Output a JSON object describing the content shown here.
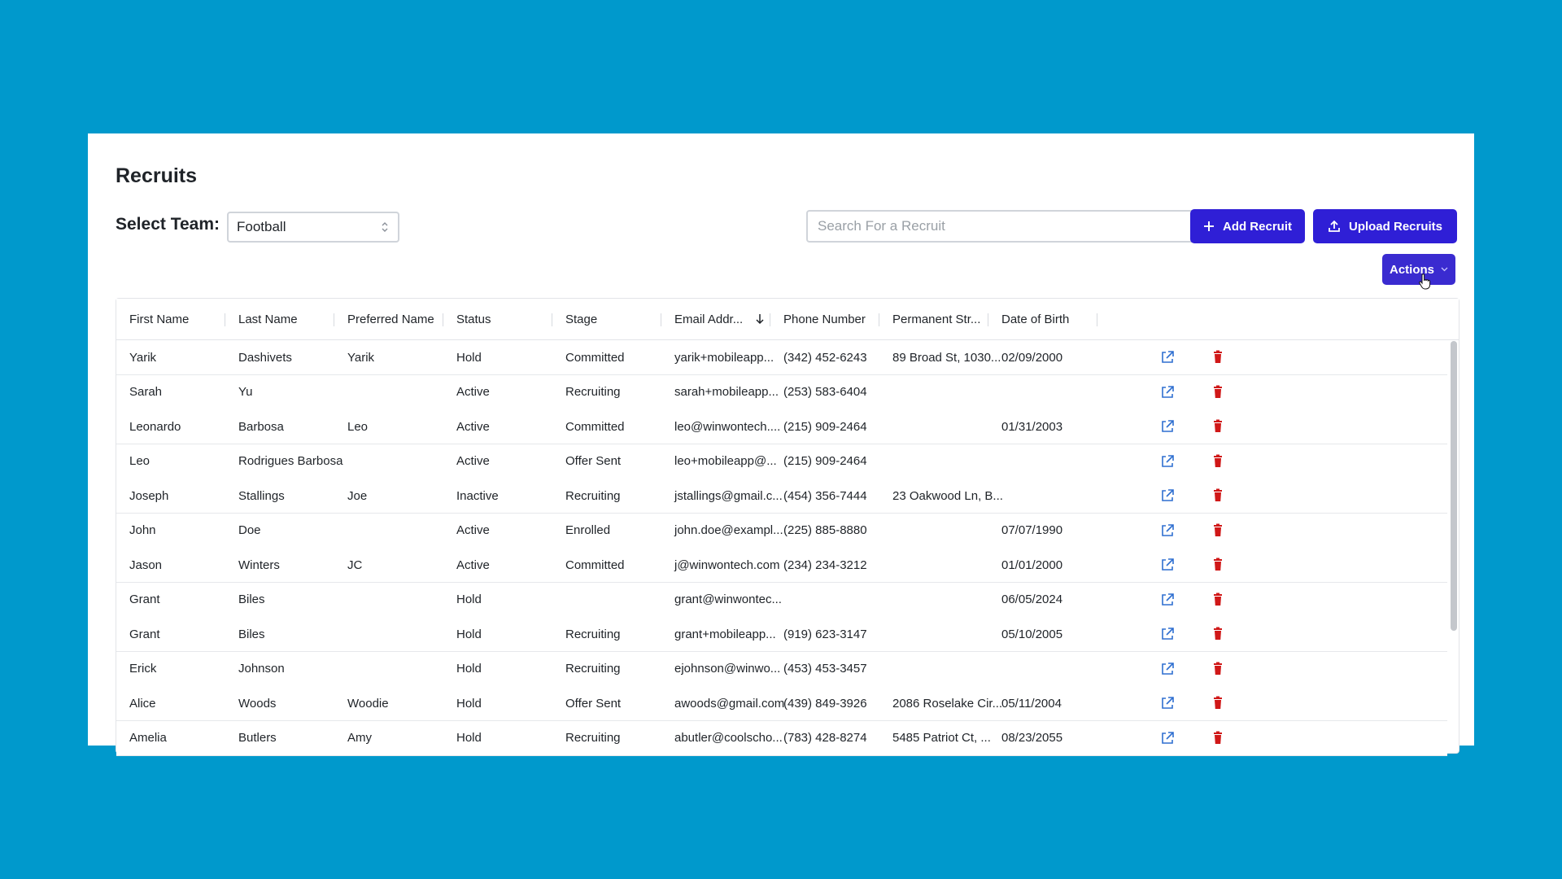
{
  "page": {
    "title": "Recruits",
    "team_label": "Select Team:",
    "team_value": "Football",
    "search_placeholder": "Search For a Recruit",
    "add_button": "Add Recruit",
    "upload_button": "Upload Recruits",
    "actions_button": "Actions"
  },
  "colors": {
    "background": "#0099cc",
    "primary_button": "#2f1fd6",
    "link_icon": "#2f6fd0",
    "delete_icon": "#d01818"
  },
  "table": {
    "columns": [
      "First Name",
      "Last Name",
      "Preferred Name",
      "Status",
      "Stage",
      "Email Addr...",
      "Phone Number",
      "Permanent Str...",
      "Date of Birth"
    ],
    "sorted_column": "Email Addr...",
    "sort_direction": "descending",
    "rows": [
      [
        "Yarik",
        "Dashivets",
        "Yarik",
        "Hold",
        "Committed",
        "yarik+mobileapp...",
        "(342) 452-6243",
        "89 Broad St, 1030...",
        "02/09/2000"
      ],
      [
        "Sarah",
        "Yu",
        "",
        "Active",
        "Recruiting",
        "sarah+mobileapp...",
        "(253) 583-6404",
        "",
        ""
      ],
      [
        "Leonardo",
        "Barbosa",
        "Leo",
        "Active",
        "Committed",
        "leo@winwontech....",
        "(215) 909-2464",
        "",
        "01/31/2003"
      ],
      [
        "Leo",
        "Rodrigues Barbosa",
        "",
        "Active",
        "Offer Sent",
        "leo+mobileapp@...",
        "(215) 909-2464",
        "",
        ""
      ],
      [
        "Joseph",
        "Stallings",
        "Joe",
        "Inactive",
        "Recruiting",
        "jstallings@gmail.c...",
        "(454) 356-7444",
        "23 Oakwood Ln, B...",
        ""
      ],
      [
        "John",
        "Doe",
        "",
        "Active",
        "Enrolled",
        "john.doe@exampl...",
        "(225) 885-8880",
        "",
        "07/07/1990"
      ],
      [
        "Jason",
        "Winters",
        "JC",
        "Active",
        "Committed",
        "j@winwontech.com",
        "(234) 234-3212",
        "",
        "01/01/2000"
      ],
      [
        "Grant",
        "Biles",
        "",
        "Hold",
        "",
        "grant@winwontec...",
        "",
        "",
        "06/05/2024"
      ],
      [
        "Grant",
        "Biles",
        "",
        "Hold",
        "Recruiting",
        "grant+mobileapp...",
        "(919) 623-3147",
        "",
        "05/10/2005"
      ],
      [
        "Erick",
        "Johnson",
        "",
        "Hold",
        "Recruiting",
        "ejohnson@winwo...",
        "(453) 453-3457",
        "",
        ""
      ],
      [
        "Alice",
        "Woods",
        "Woodie",
        "Hold",
        "Offer Sent",
        "awoods@gmail.com",
        "(439) 849-3926",
        "2086 Roselake Cir...",
        "05/11/2004"
      ],
      [
        "Amelia",
        "Butlers",
        "Amy",
        "Hold",
        "Recruiting",
        "abutler@coolscho...",
        "(783) 428-8274",
        "5485 Patriot Ct, ...",
        "08/23/2055"
      ]
    ],
    "row_action_icons": [
      "open-external-icon",
      "trash-icon"
    ]
  }
}
